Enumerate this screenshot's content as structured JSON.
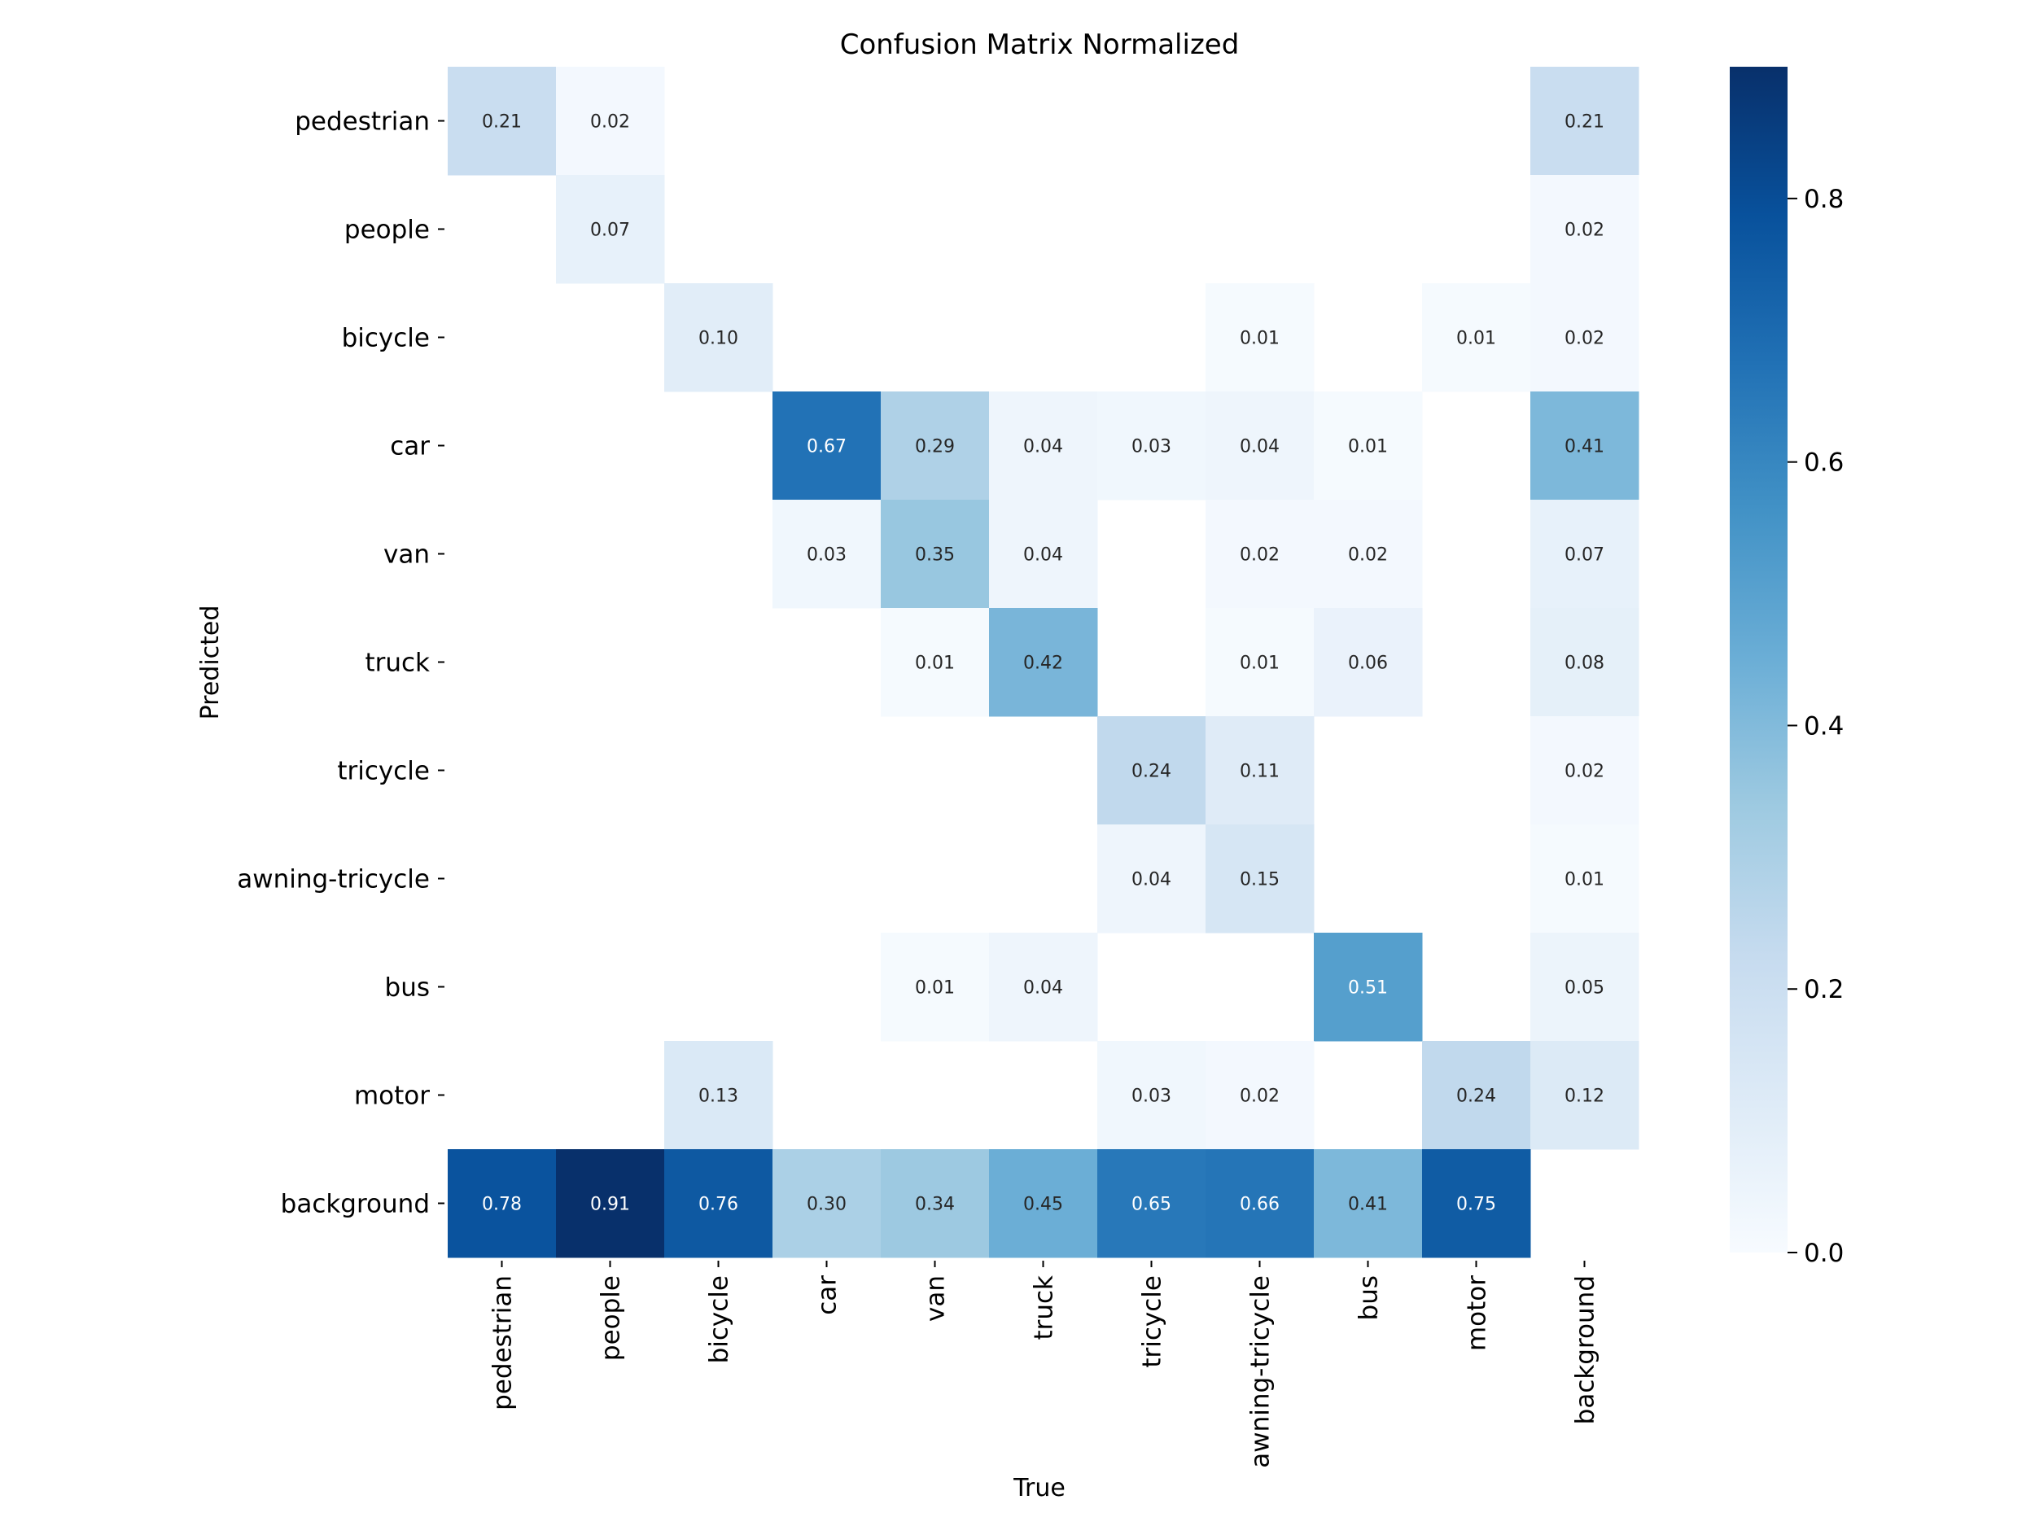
{
  "chart_data": {
    "type": "heatmap",
    "title": "Confusion Matrix Normalized",
    "xlabel": "True",
    "ylabel": "Predicted",
    "x_categories": [
      "pedestrian",
      "people",
      "bicycle",
      "car",
      "van",
      "truck",
      "tricycle",
      "awning-tricycle",
      "bus",
      "motor",
      "background"
    ],
    "y_categories": [
      "pedestrian",
      "people",
      "bicycle",
      "car",
      "van",
      "truck",
      "tricycle",
      "awning-tricycle",
      "bus",
      "motor",
      "background"
    ],
    "values": [
      [
        0.21,
        0.02,
        null,
        null,
        null,
        null,
        null,
        null,
        null,
        null,
        0.21
      ],
      [
        null,
        0.07,
        null,
        null,
        null,
        null,
        null,
        null,
        null,
        null,
        0.02
      ],
      [
        null,
        null,
        0.1,
        null,
        null,
        null,
        null,
        0.01,
        null,
        0.01,
        0.02
      ],
      [
        null,
        null,
        null,
        0.67,
        0.29,
        0.04,
        0.03,
        0.04,
        0.01,
        null,
        0.41
      ],
      [
        null,
        null,
        null,
        0.03,
        0.35,
        0.04,
        null,
        0.02,
        0.02,
        null,
        0.07
      ],
      [
        null,
        null,
        null,
        null,
        0.01,
        0.42,
        null,
        0.01,
        0.06,
        null,
        0.08
      ],
      [
        null,
        null,
        null,
        null,
        null,
        null,
        0.24,
        0.11,
        null,
        null,
        0.02
      ],
      [
        null,
        null,
        null,
        null,
        null,
        null,
        0.04,
        0.15,
        null,
        null,
        0.01
      ],
      [
        null,
        null,
        null,
        null,
        0.01,
        0.04,
        null,
        null,
        0.51,
        null,
        0.05
      ],
      [
        null,
        null,
        0.13,
        null,
        null,
        null,
        0.03,
        0.02,
        null,
        0.24,
        0.12
      ],
      [
        0.78,
        0.91,
        0.76,
        0.3,
        0.34,
        0.45,
        0.65,
        0.66,
        0.41,
        0.75,
        null
      ]
    ],
    "value_range": [
      0.0,
      0.9
    ],
    "colorbar_ticks": [
      "0.0",
      "0.2",
      "0.4",
      "0.6",
      "0.8"
    ],
    "colormap": "Blues",
    "grid": false,
    "legend": "colorbar right"
  }
}
